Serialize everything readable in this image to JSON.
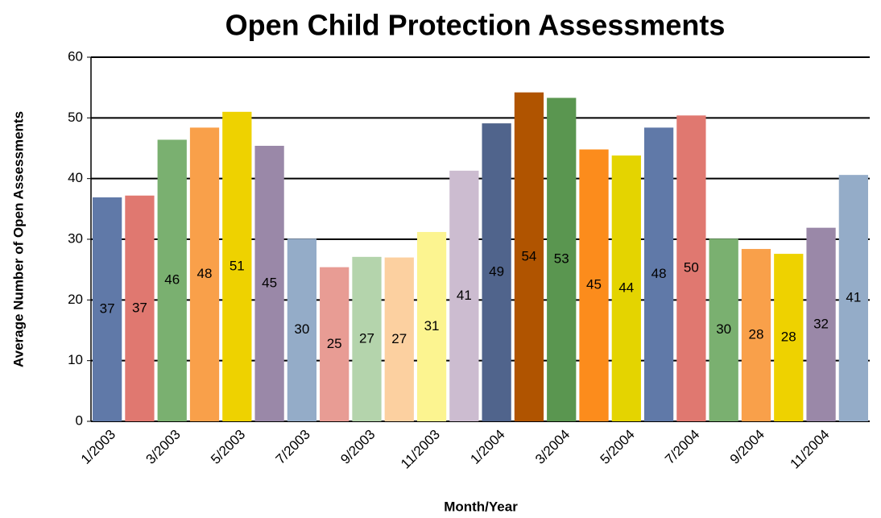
{
  "chart_data": {
    "type": "bar",
    "title": "Open Child Protection Assessments",
    "x_label": "Month/Year",
    "y_label": "Average Number of Open Assessments",
    "categories": [
      "1/2003",
      null,
      "3/2003",
      null,
      "5/2003",
      null,
      "7/2003",
      null,
      "9/2003",
      null,
      "11/2003",
      null,
      "1/2004",
      null,
      "3/2004",
      null,
      "5/2004",
      null,
      "7/2004",
      null,
      "9/2004",
      null,
      "11/2004",
      null
    ],
    "values": [
      36.9,
      37.2,
      46.4,
      48.4,
      51.0,
      45.4,
      30.1,
      25.4,
      27.1,
      27.0,
      31.2,
      41.3,
      49.1,
      54.2,
      53.3,
      44.8,
      43.8,
      48.4,
      50.4,
      30.1,
      28.4,
      27.6,
      31.9,
      40.6
    ],
    "value_labels": [
      "37",
      "37",
      "46",
      "48",
      "51",
      "45",
      "30",
      "25",
      "27",
      "27",
      "31",
      "41",
      "49",
      "54",
      "53",
      "45",
      "44",
      "48",
      "50",
      "30",
      "28",
      "28",
      "32",
      "41"
    ],
    "colors": [
      "#6079a8",
      "#e07870",
      "#7ab070",
      "#f9a04a",
      "#eed200",
      "#9a88a8",
      "#94acc8",
      "#e89c94",
      "#b4d4ac",
      "#fcd0a0",
      "#fcf490",
      "#ccbcd0",
      "#50648c",
      "#b05400",
      "#5a9650",
      "#fc8c1c",
      "#e4d400",
      "#6079a8",
      "#e07870",
      "#7ab070",
      "#f9a04a",
      "#eed200",
      "#9a88a8",
      "#94acc8"
    ],
    "ylim": [
      0,
      60
    ],
    "yticks": [
      0,
      10,
      20,
      30,
      40,
      50,
      60
    ],
    "grid": true
  }
}
